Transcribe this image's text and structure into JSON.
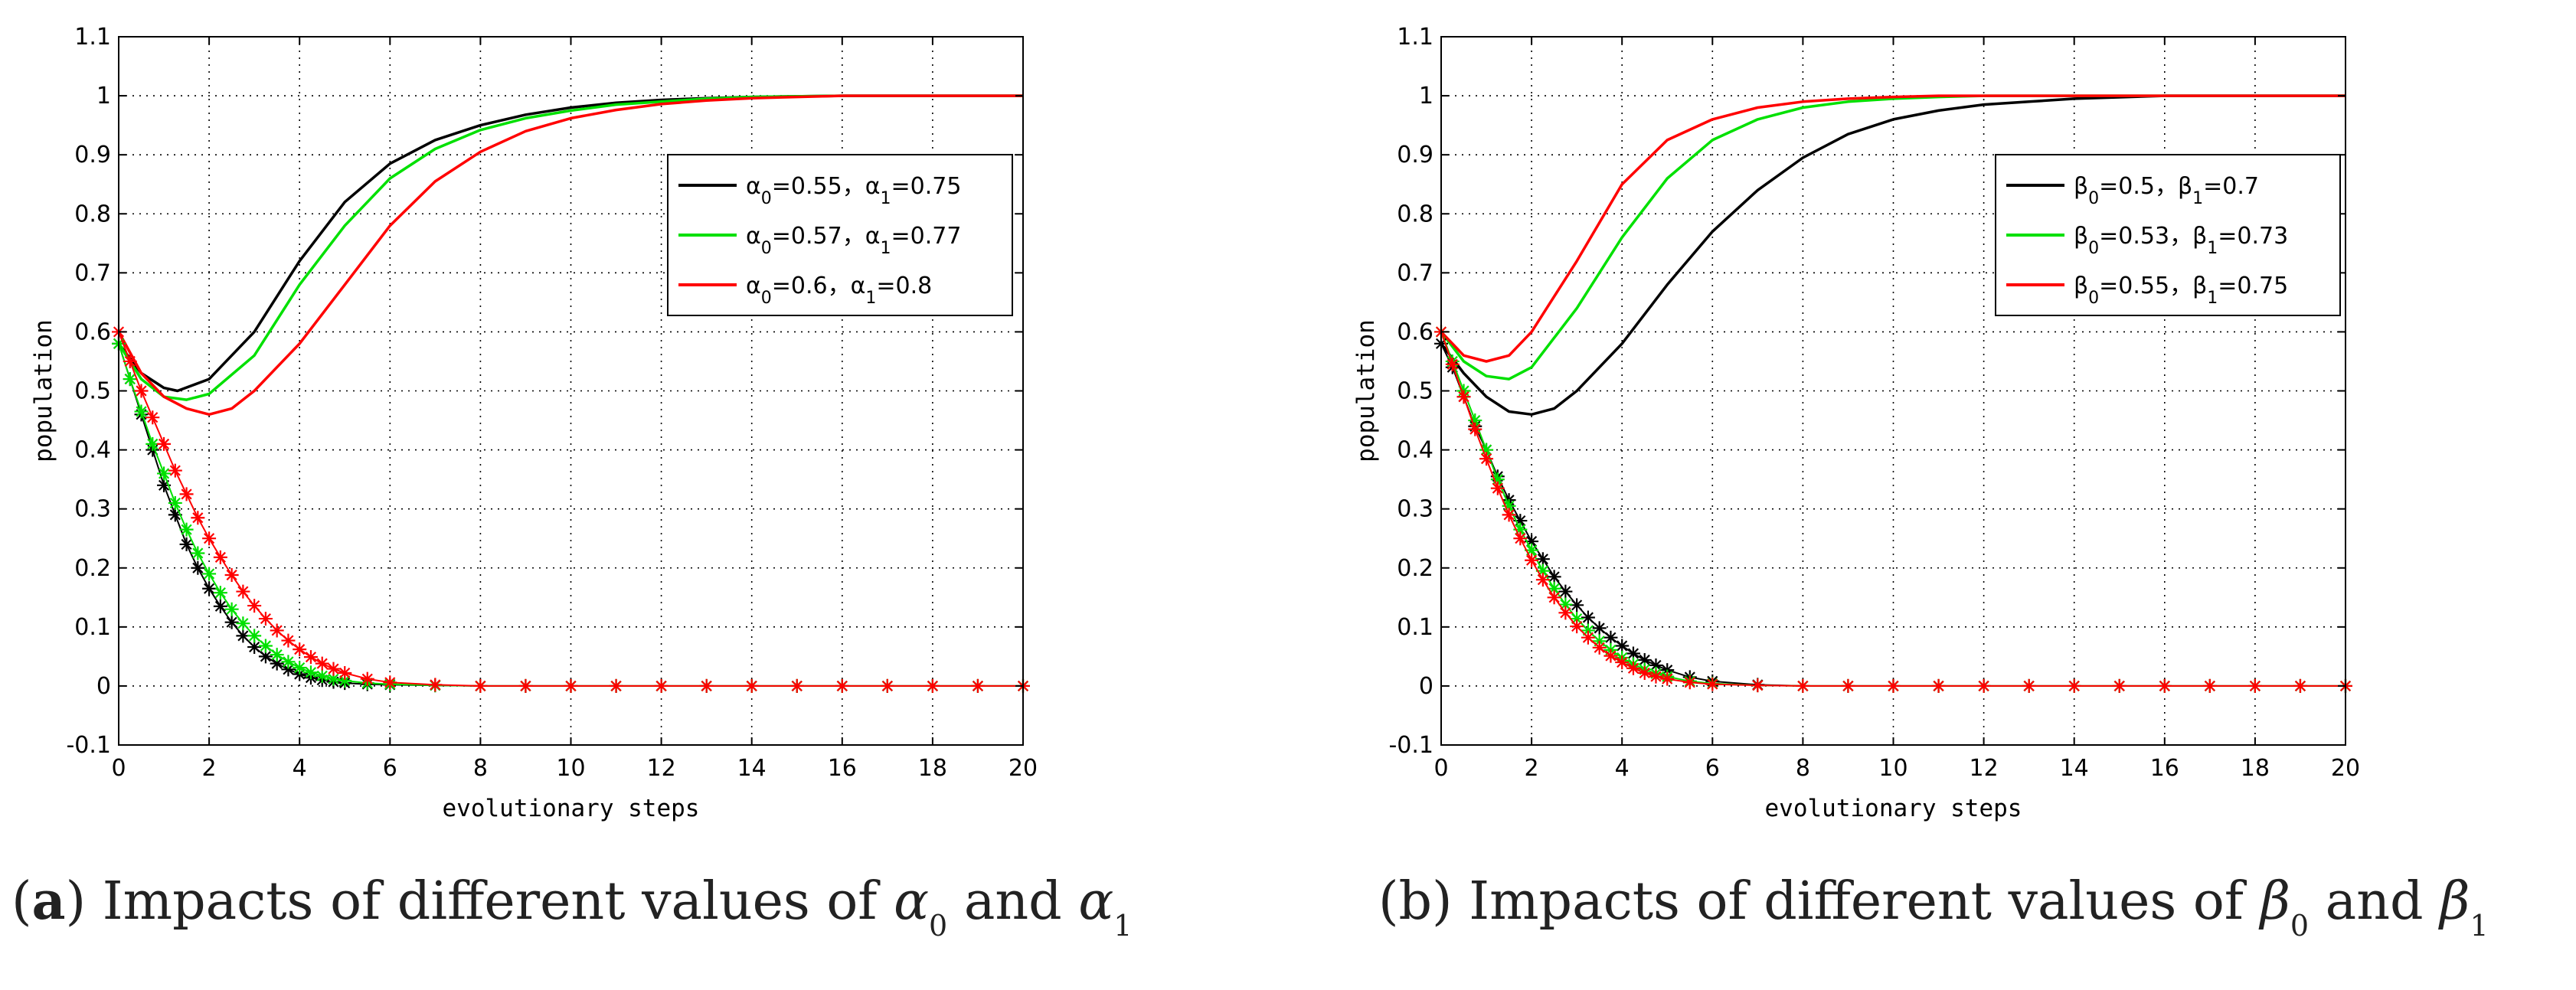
{
  "chart_data": [
    {
      "type": "line",
      "xlabel": "evolutionary steps",
      "ylabel": "population",
      "xlim": [
        0,
        20
      ],
      "ylim": [
        -0.1,
        1.1
      ],
      "x_ticks": [
        "0",
        "2",
        "4",
        "6",
        "8",
        "10",
        "12",
        "14",
        "16",
        "18",
        "20"
      ],
      "y_ticks": [
        "-0.1",
        "0",
        "0.1",
        "0.2",
        "0.3",
        "0.4",
        "0.5",
        "0.6",
        "0.7",
        "0.8",
        "0.9",
        "1",
        "1.1"
      ],
      "grid": true,
      "legend_position": "right",
      "legend": [
        {
          "greek": "α",
          "sub0": "0",
          "v0": "=0.55，",
          "sub1": "1",
          "v1": "=0.75",
          "color": "#000000"
        },
        {
          "greek": "α",
          "sub0": "0",
          "v0": "=0.57，",
          "sub1": "1",
          "v1": "=0.77",
          "color": "#00e000"
        },
        {
          "greek": "α",
          "sub0": "0",
          "v0": "=0.6，",
          "sub1": "1",
          "v1": "=0.8",
          "color": "#ff0000"
        }
      ],
      "series": [
        {
          "name": "α0=0.55, α1=0.75 (line)",
          "color": "#000000",
          "marker": "none",
          "x": [
            0,
            0.5,
            1,
            1.3,
            2,
            3,
            4,
            5,
            6,
            7,
            8,
            9,
            10,
            11,
            12,
            13,
            14,
            16,
            18,
            20
          ],
          "y": [
            0.58,
            0.53,
            0.505,
            0.5,
            0.52,
            0.6,
            0.72,
            0.82,
            0.885,
            0.925,
            0.95,
            0.968,
            0.98,
            0.988,
            0.993,
            0.996,
            0.998,
            1,
            1,
            1
          ]
        },
        {
          "name": "α0=0.57, α1=0.77 (line)",
          "color": "#00e000",
          "marker": "none",
          "x": [
            0,
            0.5,
            1,
            1.5,
            2,
            3,
            4,
            5,
            6,
            7,
            8,
            9,
            10,
            11,
            12,
            13,
            14,
            16,
            18,
            20
          ],
          "y": [
            0.58,
            0.52,
            0.49,
            0.485,
            0.495,
            0.56,
            0.68,
            0.78,
            0.86,
            0.91,
            0.942,
            0.962,
            0.975,
            0.985,
            0.99,
            0.995,
            0.998,
            1,
            1,
            1
          ]
        },
        {
          "name": "α0=0.6, α1=0.8 (line)",
          "color": "#ff0000",
          "marker": "none",
          "x": [
            0,
            0.5,
            1,
            1.5,
            2,
            2.5,
            3,
            4,
            5,
            6,
            7,
            8,
            9,
            10,
            11,
            12,
            13,
            14,
            16,
            18,
            20
          ],
          "y": [
            0.6,
            0.53,
            0.49,
            0.47,
            0.46,
            0.47,
            0.5,
            0.58,
            0.68,
            0.78,
            0.855,
            0.905,
            0.94,
            0.962,
            0.976,
            0.986,
            0.992,
            0.996,
            1,
            1,
            1
          ]
        },
        {
          "name": "α0=0.55, α1=0.75 (markers)",
          "color": "#000000",
          "marker": "*",
          "x": [
            0,
            0.25,
            0.5,
            0.75,
            1,
            1.25,
            1.5,
            1.75,
            2,
            2.25,
            2.5,
            2.75,
            3,
            3.25,
            3.5,
            3.75,
            4,
            4.25,
            4.5,
            4.75,
            5,
            5.5,
            6,
            7,
            8,
            9,
            10,
            11,
            12,
            13,
            14,
            15,
            16,
            17,
            18,
            19,
            20
          ],
          "y": [
            0.58,
            0.52,
            0.46,
            0.4,
            0.34,
            0.29,
            0.24,
            0.2,
            0.165,
            0.135,
            0.108,
            0.085,
            0.066,
            0.05,
            0.038,
            0.028,
            0.02,
            0.014,
            0.01,
            0.007,
            0.005,
            0.003,
            0.002,
            0.001,
            0,
            0,
            0,
            0,
            0,
            0,
            0,
            0,
            0,
            0,
            0,
            0,
            0
          ]
        },
        {
          "name": "α0=0.57, α1=0.77 (markers)",
          "color": "#00e000",
          "marker": "*",
          "x": [
            0,
            0.25,
            0.5,
            0.75,
            1,
            1.25,
            1.5,
            1.75,
            2,
            2.25,
            2.5,
            2.75,
            3,
            3.25,
            3.5,
            3.75,
            4,
            4.25,
            4.5,
            4.75,
            5,
            5.5,
            6,
            7,
            8,
            9,
            10,
            11,
            12,
            13,
            14,
            15,
            16,
            17,
            18,
            19,
            20
          ],
          "y": [
            0.58,
            0.52,
            0.465,
            0.41,
            0.36,
            0.31,
            0.265,
            0.225,
            0.19,
            0.158,
            0.13,
            0.106,
            0.085,
            0.068,
            0.053,
            0.041,
            0.031,
            0.023,
            0.017,
            0.012,
            0.009,
            0.005,
            0.003,
            0.001,
            0,
            0,
            0,
            0,
            0,
            0,
            0,
            0,
            0,
            0,
            0,
            0,
            0
          ]
        },
        {
          "name": "α0=0.6, α1=0.8 (markers)",
          "color": "#ff0000",
          "marker": "*",
          "x": [
            0,
            0.25,
            0.5,
            0.75,
            1,
            1.25,
            1.5,
            1.75,
            2,
            2.25,
            2.5,
            2.75,
            3,
            3.25,
            3.5,
            3.75,
            4,
            4.25,
            4.5,
            4.75,
            5,
            5.5,
            6,
            7,
            8,
            9,
            10,
            11,
            12,
            13,
            14,
            15,
            16,
            17,
            18,
            19,
            20
          ],
          "y": [
            0.6,
            0.55,
            0.5,
            0.455,
            0.41,
            0.365,
            0.325,
            0.285,
            0.25,
            0.218,
            0.188,
            0.16,
            0.136,
            0.114,
            0.094,
            0.077,
            0.062,
            0.049,
            0.038,
            0.029,
            0.022,
            0.012,
            0.006,
            0.002,
            0,
            0,
            0,
            0,
            0,
            0,
            0,
            0,
            0,
            0,
            0,
            0,
            0
          ]
        }
      ],
      "caption": {
        "prefix": "(",
        "bold": "a",
        "text": ") Impacts of different values of ",
        "sym0": "α",
        "sub0": "0",
        "mid": " and ",
        "sym1": "α",
        "sub1": "1"
      }
    },
    {
      "type": "line",
      "xlabel": "evolutionary steps",
      "ylabel": "population",
      "xlim": [
        0,
        20
      ],
      "ylim": [
        -0.1,
        1.1
      ],
      "x_ticks": [
        "0",
        "2",
        "4",
        "6",
        "8",
        "10",
        "12",
        "14",
        "16",
        "18",
        "20"
      ],
      "y_ticks": [
        "-0.1",
        "0",
        "0.1",
        "0.2",
        "0.3",
        "0.4",
        "0.5",
        "0.6",
        "0.7",
        "0.8",
        "0.9",
        "1",
        "1.1"
      ],
      "grid": true,
      "legend_position": "right",
      "legend": [
        {
          "greek": "β",
          "sub0": "0",
          "v0": "=0.5，",
          "sub1": "1",
          "v1": "=0.7",
          "color": "#000000"
        },
        {
          "greek": "β",
          "sub0": "0",
          "v0": "=0.53，",
          "sub1": "1",
          "v1": "=0.73",
          "color": "#00e000"
        },
        {
          "greek": "β",
          "sub0": "0",
          "v0": "=0.55，",
          "sub1": "1",
          "v1": "=0.75",
          "color": "#ff0000"
        }
      ],
      "series": [
        {
          "name": "β0=0.5, β1=0.7 (line)",
          "color": "#000000",
          "marker": "none",
          "x": [
            0,
            0.5,
            1,
            1.5,
            2,
            2.5,
            3,
            4,
            5,
            6,
            7,
            8,
            9,
            10,
            11,
            12,
            13,
            14,
            16,
            18,
            20
          ],
          "y": [
            0.58,
            0.53,
            0.49,
            0.465,
            0.46,
            0.47,
            0.5,
            0.58,
            0.68,
            0.77,
            0.84,
            0.895,
            0.935,
            0.96,
            0.975,
            0.985,
            0.99,
            0.995,
            1,
            1,
            1
          ]
        },
        {
          "name": "β0=0.53, β1=0.73 (line)",
          "color": "#00e000",
          "marker": "none",
          "x": [
            0,
            0.5,
            1,
            1.5,
            2,
            3,
            4,
            5,
            6,
            7,
            8,
            9,
            10,
            11,
            12,
            14,
            16,
            18,
            20
          ],
          "y": [
            0.6,
            0.55,
            0.525,
            0.52,
            0.54,
            0.64,
            0.76,
            0.86,
            0.925,
            0.96,
            0.98,
            0.99,
            0.995,
            0.998,
            1,
            1,
            1,
            1,
            1
          ]
        },
        {
          "name": "β0=0.55, β1=0.75 (line)",
          "color": "#ff0000",
          "marker": "none",
          "x": [
            0,
            0.5,
            1,
            1.5,
            2,
            3,
            4,
            5,
            6,
            7,
            8,
            9,
            10,
            11,
            12,
            14,
            16,
            18,
            20
          ],
          "y": [
            0.6,
            0.56,
            0.55,
            0.56,
            0.6,
            0.72,
            0.85,
            0.925,
            0.96,
            0.98,
            0.99,
            0.995,
            0.998,
            1,
            1,
            1,
            1,
            1,
            1
          ]
        },
        {
          "name": "β0=0.5, β1=0.7 (markers)",
          "color": "#000000",
          "marker": "*",
          "x": [
            0,
            0.25,
            0.5,
            0.75,
            1,
            1.25,
            1.5,
            1.75,
            2,
            2.25,
            2.5,
            2.75,
            3,
            3.25,
            3.5,
            3.75,
            4,
            4.25,
            4.5,
            4.75,
            5,
            5.5,
            6,
            7,
            8,
            9,
            10,
            11,
            12,
            13,
            14,
            15,
            16,
            17,
            18,
            19,
            20
          ],
          "y": [
            0.58,
            0.54,
            0.49,
            0.44,
            0.4,
            0.355,
            0.315,
            0.28,
            0.245,
            0.215,
            0.185,
            0.16,
            0.137,
            0.116,
            0.098,
            0.082,
            0.068,
            0.055,
            0.044,
            0.035,
            0.027,
            0.015,
            0.008,
            0.002,
            0,
            0,
            0,
            0,
            0,
            0,
            0,
            0,
            0,
            0,
            0,
            0,
            0
          ]
        },
        {
          "name": "β0=0.53, β1=0.73 (markers)",
          "color": "#00e000",
          "marker": "*",
          "x": [
            0,
            0.25,
            0.5,
            0.75,
            1,
            1.25,
            1.5,
            1.75,
            2,
            2.25,
            2.5,
            2.75,
            3,
            3.25,
            3.5,
            3.75,
            4,
            4.25,
            4.5,
            4.75,
            5,
            5.5,
            6,
            7,
            8,
            9,
            10,
            11,
            12,
            13,
            14,
            15,
            16,
            17,
            18,
            19,
            20
          ],
          "y": [
            0.6,
            0.55,
            0.5,
            0.45,
            0.4,
            0.35,
            0.305,
            0.265,
            0.23,
            0.195,
            0.165,
            0.138,
            0.114,
            0.094,
            0.076,
            0.061,
            0.048,
            0.037,
            0.028,
            0.021,
            0.016,
            0.008,
            0.004,
            0.001,
            0,
            0,
            0,
            0,
            0,
            0,
            0,
            0,
            0,
            0,
            0,
            0,
            0
          ]
        },
        {
          "name": "β0=0.55, β1=0.75 (markers)",
          "color": "#ff0000",
          "marker": "*",
          "x": [
            0,
            0.25,
            0.5,
            0.75,
            1,
            1.25,
            1.5,
            1.75,
            2,
            2.25,
            2.5,
            2.75,
            3,
            3.25,
            3.5,
            3.75,
            4,
            4.25,
            4.5,
            4.75,
            5,
            5.5,
            6,
            7,
            8,
            9,
            10,
            11,
            12,
            13,
            14,
            15,
            16,
            17,
            18,
            19,
            20
          ],
          "y": [
            0.6,
            0.545,
            0.49,
            0.435,
            0.385,
            0.335,
            0.29,
            0.25,
            0.213,
            0.18,
            0.15,
            0.124,
            0.101,
            0.082,
            0.065,
            0.051,
            0.04,
            0.03,
            0.022,
            0.016,
            0.012,
            0.006,
            0.003,
            0.001,
            0,
            0,
            0,
            0,
            0,
            0,
            0,
            0,
            0,
            0,
            0,
            0,
            0
          ]
        }
      ],
      "caption": {
        "prefix": "",
        "bold": "",
        "text": "(b) Impacts of different values of ",
        "sym0": "β",
        "sub0": "0",
        "mid": " and ",
        "sym1": "β",
        "sub1": "1"
      }
    }
  ]
}
